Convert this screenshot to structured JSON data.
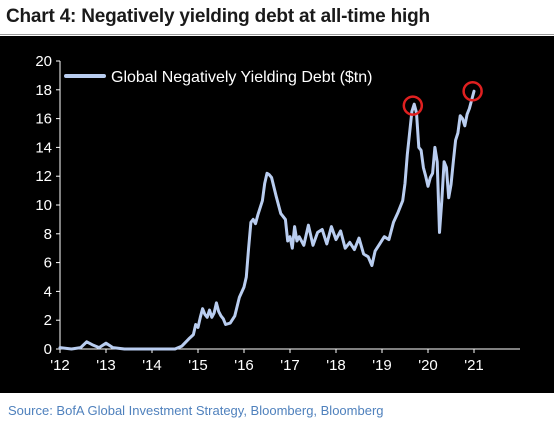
{
  "title": "Chart 4: Negatively yielding debt at all-time high",
  "source": "Source: BofA Global Investment Strategy, Bloomberg, Bloomberg",
  "colors": {
    "background": "#000000",
    "line": "#b9cdf0",
    "highlight": "#e02020",
    "axis": "#ffffff",
    "source_text": "#4f81bd"
  },
  "chart_data": {
    "type": "line",
    "title": "Chart 4: Negatively yielding debt at all-time high",
    "xlabel": "",
    "ylabel": "",
    "xlim": [
      2012,
      2022
    ],
    "ylim": [
      0,
      20
    ],
    "yticks": [
      0,
      2,
      4,
      6,
      8,
      10,
      12,
      14,
      16,
      18,
      20
    ],
    "xticks": [
      {
        "value": 2012,
        "label": "'12"
      },
      {
        "value": 2013,
        "label": "'13"
      },
      {
        "value": 2014,
        "label": "'14"
      },
      {
        "value": 2015,
        "label": "'15"
      },
      {
        "value": 2016,
        "label": "'16"
      },
      {
        "value": 2017,
        "label": "'17"
      },
      {
        "value": 2018,
        "label": "'18"
      },
      {
        "value": 2019,
        "label": "'19"
      },
      {
        "value": 2020,
        "label": "'20"
      },
      {
        "value": 2021,
        "label": "'21"
      }
    ],
    "grid": false,
    "legend_position": "top-left",
    "series": [
      {
        "name": "Global Negatively Yielding Debt ($tn)",
        "x": [
          2012.0,
          2012.25,
          2012.45,
          2012.58,
          2012.7,
          2012.85,
          2013.0,
          2013.15,
          2013.4,
          2013.8,
          2014.2,
          2014.5,
          2014.65,
          2014.8,
          2014.9,
          2014.95,
          2015.0,
          2015.05,
          2015.1,
          2015.15,
          2015.2,
          2015.25,
          2015.3,
          2015.35,
          2015.4,
          2015.45,
          2015.5,
          2015.55,
          2015.6,
          2015.7,
          2015.8,
          2015.9,
          2016.0,
          2016.05,
          2016.1,
          2016.15,
          2016.2,
          2016.25,
          2016.3,
          2016.4,
          2016.45,
          2016.5,
          2016.55,
          2016.6,
          2016.7,
          2016.8,
          2016.9,
          2016.95,
          2017.0,
          2017.05,
          2017.1,
          2017.15,
          2017.2,
          2017.3,
          2017.4,
          2017.5,
          2017.6,
          2017.7,
          2017.8,
          2017.9,
          2018.0,
          2018.1,
          2018.2,
          2018.3,
          2018.4,
          2018.5,
          2018.6,
          2018.7,
          2018.78,
          2018.85,
          2018.95,
          2019.05,
          2019.15,
          2019.25,
          2019.35,
          2019.45,
          2019.5,
          2019.55,
          2019.6,
          2019.65,
          2019.7,
          2019.75,
          2019.8,
          2019.85,
          2019.9,
          2019.95,
          2020.0,
          2020.05,
          2020.1,
          2020.15,
          2020.2,
          2020.25,
          2020.3,
          2020.35,
          2020.4,
          2020.45,
          2020.5,
          2020.55,
          2020.6,
          2020.65,
          2020.7,
          2020.75,
          2020.8,
          2020.85,
          2020.9,
          2020.95,
          2021.0
        ],
        "values": [
          0.1,
          0.0,
          0.1,
          0.5,
          0.3,
          0.1,
          0.4,
          0.1,
          0.0,
          0.0,
          0.0,
          0.0,
          0.2,
          0.7,
          1.0,
          1.7,
          1.5,
          2.2,
          2.8,
          2.4,
          2.2,
          2.7,
          2.2,
          2.5,
          3.2,
          2.6,
          2.3,
          2.1,
          1.7,
          1.8,
          2.3,
          3.6,
          4.3,
          5.0,
          7.0,
          8.8,
          9.0,
          8.7,
          9.3,
          10.3,
          11.5,
          12.2,
          12.1,
          11.9,
          10.6,
          9.4,
          9.0,
          7.5,
          7.8,
          7.0,
          8.5,
          7.5,
          7.8,
          7.2,
          8.6,
          7.2,
          8.1,
          8.3,
          7.3,
          8.5,
          7.6,
          8.2,
          7.0,
          7.4,
          6.9,
          7.7,
          6.6,
          6.4,
          5.8,
          6.8,
          7.3,
          7.8,
          7.6,
          8.8,
          9.5,
          10.3,
          11.5,
          13.5,
          15.0,
          16.5,
          17.0,
          16.4,
          14.0,
          13.8,
          12.6,
          12.0,
          11.3,
          11.9,
          12.2,
          14.0,
          13.0,
          8.1,
          10.3,
          13.0,
          12.6,
          10.5,
          11.4,
          13.0,
          14.5,
          15.0,
          16.2,
          16.0,
          15.5,
          16.3,
          16.7,
          17.3,
          17.9
        ]
      }
    ],
    "annotations": [
      {
        "type": "circle",
        "x": 2019.67,
        "y": 16.9
      },
      {
        "type": "circle",
        "x": 2020.97,
        "y": 17.9
      }
    ]
  }
}
